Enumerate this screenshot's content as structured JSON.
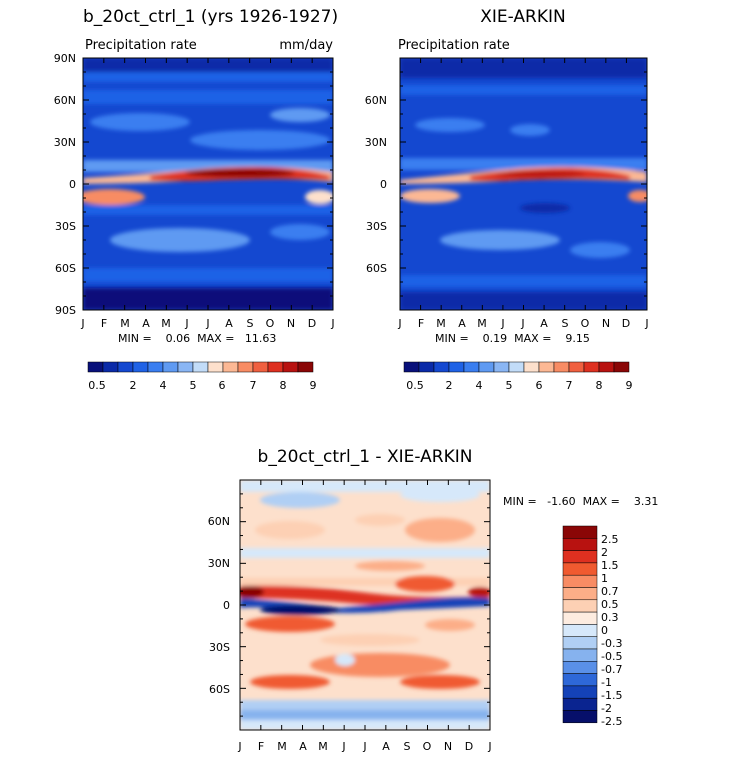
{
  "chart_data": [
    {
      "type": "heatmap",
      "title": "b_20ct_ctrl_1 (yrs 1926-1927)",
      "subtitle_left": "Precipitation rate",
      "subtitle_right": "mm/day",
      "x_ticks": [
        "J",
        "F",
        "M",
        "A",
        "M",
        "J",
        "J",
        "A",
        "S",
        "O",
        "N",
        "D",
        "J"
      ],
      "y_ticks": [
        "90N",
        "60N",
        "30N",
        "0",
        "30S",
        "60S",
        "90S"
      ],
      "ylim": [
        -90,
        90
      ],
      "min_max": "MIN =    0.06  MAX =   11.63",
      "colorbar_labels": [
        "0.5",
        "2",
        "4",
        "5",
        "6",
        "7",
        "8",
        "9"
      ]
    },
    {
      "type": "heatmap",
      "title": "XIE-ARKIN",
      "subtitle_left": "Precipitation rate",
      "subtitle_right": "",
      "x_ticks": [
        "J",
        "F",
        "M",
        "A",
        "M",
        "J",
        "J",
        "A",
        "S",
        "O",
        "N",
        "D",
        "J"
      ],
      "y_ticks": [
        "60N",
        "30N",
        "0",
        "30S",
        "60S"
      ],
      "ylim": [
        -90,
        90
      ],
      "min_max": "MIN =    0.19  MAX =    9.15",
      "colorbar_labels": [
        "0.5",
        "2",
        "4",
        "5",
        "6",
        "7",
        "8",
        "9"
      ]
    },
    {
      "type": "heatmap",
      "title": "b_20ct_ctrl_1 - XIE-ARKIN",
      "subtitle_left": "",
      "subtitle_right": "",
      "x_ticks": [
        "J",
        "F",
        "M",
        "A",
        "M",
        "J",
        "J",
        "A",
        "S",
        "O",
        "N",
        "D",
        "J"
      ],
      "y_ticks": [
        "60N",
        "30N",
        "0",
        "30S",
        "60S"
      ],
      "ylim": [
        -90,
        90
      ],
      "min_max": "MIN =   -1.60  MAX =    3.31",
      "colorbar_labels": [
        "2.5",
        "2",
        "1.5",
        "1",
        "0.7",
        "0.5",
        "0.3",
        "0",
        "-0.3",
        "-0.5",
        "-0.7",
        "-1",
        "-1.5",
        "-2",
        "-2.5"
      ]
    }
  ],
  "colors": {
    "precip_scale": [
      "#08107a",
      "#0a2aa8",
      "#1448d0",
      "#1f62e6",
      "#3a7ef0",
      "#5f9af2",
      "#8ab6f4",
      "#c2dcf8",
      "#fde0cc",
      "#fcb894",
      "#f88c64",
      "#f06040",
      "#de3020",
      "#b81210",
      "#8a0606"
    ],
    "diff_scale": [
      "#8a0606",
      "#b81210",
      "#de3020",
      "#f05a30",
      "#f88c64",
      "#fcae88",
      "#fdd0b4",
      "#fdece0",
      "#d6e8fa",
      "#b0cff4",
      "#86b2ee",
      "#5a90e8",
      "#2e68d8",
      "#1442b8",
      "#0a2490",
      "#060f6a"
    ]
  }
}
